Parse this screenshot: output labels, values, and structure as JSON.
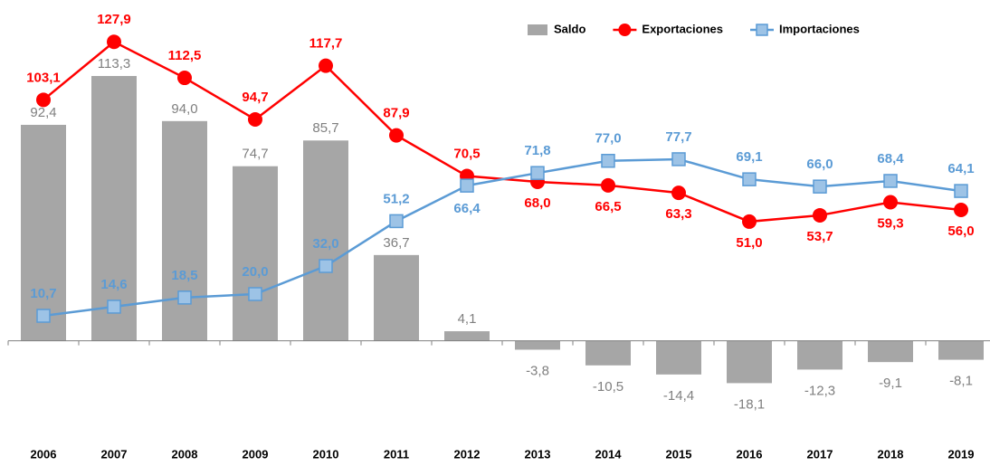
{
  "chart_data": {
    "type": "bar-line",
    "categories": [
      "2006",
      "2007",
      "2008",
      "2009",
      "2010",
      "2011",
      "2012",
      "2013",
      "2014",
      "2015",
      "2016",
      "2017",
      "2018",
      "2019"
    ],
    "ylim": [
      -40,
      140
    ],
    "legend": "top-right",
    "series": [
      {
        "name": "Saldo",
        "type": "bar",
        "color": "#a6a6a6",
        "label_color": "#7f7f7f",
        "values": [
          92.4,
          113.3,
          94.0,
          74.7,
          85.7,
          36.7,
          4.1,
          -3.8,
          -10.5,
          -14.4,
          -18.1,
          -12.3,
          -9.1,
          -8.1
        ],
        "value_labels": [
          "92,4",
          "113,3",
          "94,0",
          "74,7",
          "85,7",
          "36,7",
          "4,1",
          "-3,8",
          "-10,5",
          "-14,4",
          "-18,1",
          "-12,3",
          "-9,1",
          "-8,1"
        ]
      },
      {
        "name": "Exportaciones",
        "type": "line",
        "color": "#ff0000",
        "label_color": "#ff0000",
        "values": [
          103.1,
          127.9,
          112.5,
          94.7,
          117.7,
          87.9,
          70.5,
          68.0,
          66.5,
          63.3,
          51.0,
          53.7,
          59.3,
          56.0
        ],
        "value_labels": [
          "103,1",
          "127,9",
          "112,5",
          "94,7",
          "117,7",
          "87,9",
          "70,5",
          "68,0",
          "66,5",
          "63,3",
          "51,0",
          "53,7",
          "59,3",
          "56,0"
        ]
      },
      {
        "name": "Importaciones",
        "type": "line",
        "color": "#5b9bd5",
        "label_color": "#5b9bd5",
        "values": [
          10.7,
          14.6,
          18.5,
          20.0,
          32.0,
          51.2,
          66.4,
          71.8,
          77.0,
          77.7,
          69.1,
          66.0,
          68.4,
          64.1
        ],
        "value_labels": [
          "10,7",
          "14,6",
          "18,5",
          "20,0",
          "32,0",
          "51,2",
          "66,4",
          "71,8",
          "77,0",
          "77,7",
          "69,1",
          "66,0",
          "68,4",
          "64,1"
        ]
      }
    ]
  }
}
